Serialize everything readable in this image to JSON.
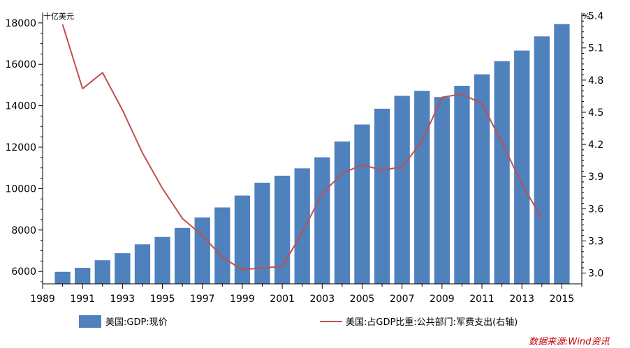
{
  "chart_data": {
    "type": "bar",
    "left_unit": "十亿美元",
    "right_unit": "%",
    "x": [
      1990,
      1991,
      1992,
      1993,
      1994,
      1995,
      1996,
      1997,
      1998,
      1999,
      2000,
      2001,
      2002,
      2003,
      2004,
      2005,
      2006,
      2007,
      2008,
      2009,
      2010,
      2011,
      2012,
      2013,
      2014,
      2015
    ],
    "x_tick_labels": [
      "1989",
      "1991",
      "1993",
      "1995",
      "1997",
      "1999",
      "2001",
      "2003",
      "2005",
      "2007",
      "2009",
      "2011",
      "2013",
      "2015"
    ],
    "y_left_ticks": [
      "6000",
      "8000",
      "10000",
      "12000",
      "14000",
      "16000",
      "18000"
    ],
    "y_right_ticks": [
      "3.0",
      "3.3",
      "3.6",
      "3.9",
      "4.2",
      "4.5",
      "4.8",
      "5.1",
      "5.4"
    ],
    "ylim_left": [
      5400,
      18500
    ],
    "ylim_right": [
      2.9,
      5.43
    ],
    "series": [
      {
        "name": "美国:GDP:现价",
        "type": "bar",
        "axis": "left",
        "color": "#4f81bd",
        "x": [
          1990,
          1991,
          1992,
          1993,
          1994,
          1995,
          1996,
          1997,
          1998,
          1999,
          2000,
          2001,
          2002,
          2003,
          2004,
          2005,
          2006,
          2007,
          2008,
          2009,
          2010,
          2011,
          2012,
          2013,
          2014,
          2015
        ],
        "values": [
          5980,
          6174,
          6539,
          6879,
          7309,
          7664,
          8100,
          8609,
          9089,
          9661,
          10285,
          10622,
          10978,
          11511,
          12275,
          13094,
          13856,
          14478,
          14719,
          14419,
          14964,
          15518,
          16155,
          16663,
          17348,
          17947
        ]
      },
      {
        "name": "美国:占GDP比重:公共部门:军费支出(右轴)",
        "type": "line",
        "axis": "right",
        "color": "#c0504d",
        "x": [
          1990,
          1991,
          1992,
          1993,
          1994,
          1995,
          1996,
          1997,
          1998,
          1999,
          2000,
          2001,
          2002,
          2003,
          2004,
          2005,
          2006,
          2007,
          2008,
          2009,
          2010,
          2011,
          2012,
          2013,
          2014
        ],
        "values": [
          5.32,
          4.72,
          4.87,
          4.52,
          4.12,
          3.79,
          3.51,
          3.35,
          3.15,
          3.03,
          3.05,
          3.06,
          3.38,
          3.74,
          3.93,
          4.01,
          3.96,
          3.99,
          4.23,
          4.64,
          4.67,
          4.58,
          4.22,
          3.83,
          3.51
        ]
      }
    ],
    "legend_position": "bottom",
    "source_note": "数据来源:Wind资讯"
  }
}
